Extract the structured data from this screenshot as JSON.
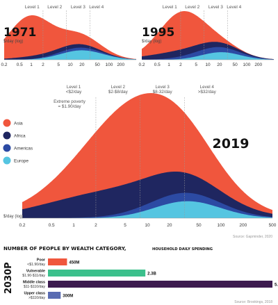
{
  "colors": {
    "asia": "#f0563d",
    "africa": "#1f2660",
    "americas": "#2c4aa3",
    "europe": "#55c5e1",
    "bar_poor": "#f0563d",
    "bar_vulnerable": "#3cc08c",
    "bar_middle": "#3d1b4f",
    "bar_upper": "#5a6cb2"
  },
  "chart_data": [
    {
      "type": "area",
      "title": "1971",
      "ylabel": "$/day (log)",
      "x_scale": "log",
      "xlim": [
        0.2,
        500
      ],
      "x_ticks": [
        "0.2",
        "0.5",
        "1",
        "2",
        "5",
        "10",
        "20",
        "50",
        "100",
        "200"
      ],
      "levels": [
        "Level 1",
        "Level 2",
        "Level 3",
        "Level 4"
      ],
      "level_boundaries": [
        2,
        8,
        32
      ],
      "series": [
        {
          "name": "Asia",
          "components": [
            {
              "mu": 0.9,
              "sigma": 0.55,
              "h": 0.72
            },
            {
              "mu": 17,
              "sigma": 0.55,
              "h": 0.16
            }
          ]
        },
        {
          "name": "Africa",
          "components": [
            {
              "mu": 1.4,
              "sigma": 0.6,
              "h": 0.05
            },
            {
              "mu": 14,
              "sigma": 0.55,
              "h": 0.055
            }
          ]
        },
        {
          "name": "Americas",
          "components": [
            {
              "mu": 15,
              "sigma": 0.55,
              "h": 0.05
            }
          ]
        },
        {
          "name": "Europe",
          "components": [
            {
              "mu": 20,
              "sigma": 0.55,
              "h": 0.17
            }
          ]
        }
      ]
    },
    {
      "type": "area",
      "title": "1995",
      "ylabel": "$/day (log)",
      "x_scale": "log",
      "xlim": [
        0.2,
        500
      ],
      "x_ticks": [
        "0.2",
        "0.5",
        "1",
        "2",
        "5",
        "10",
        "20",
        "50",
        "100",
        "200"
      ],
      "levels": [
        "Level 1",
        "Level 2",
        "Level 3",
        "Level 4"
      ],
      "level_boundaries": [
        2,
        8,
        32
      ],
      "series": [
        {
          "name": "Asia",
          "components": [
            {
              "mu": 1.8,
              "sigma": 0.55,
              "h": 0.6
            },
            {
              "mu": 4,
              "sigma": 0.5,
              "h": 0.12
            }
          ]
        },
        {
          "name": "Africa",
          "components": [
            {
              "mu": 2,
              "sigma": 0.85,
              "h": 0.12
            },
            {
              "mu": 20,
              "sigma": 0.55,
              "h": 0.03
            }
          ]
        },
        {
          "name": "Americas",
          "components": [
            {
              "mu": 12,
              "sigma": 0.65,
              "h": 0.1
            }
          ]
        },
        {
          "name": "Europe",
          "components": [
            {
              "mu": 22,
              "sigma": 0.5,
              "h": 0.14
            }
          ]
        }
      ]
    },
    {
      "type": "area",
      "title": "2019",
      "ylabel": "$/day (log)",
      "x_scale": "log",
      "xlim": [
        0.2,
        500
      ],
      "x_ticks": [
        "0.2",
        "0.5",
        "1",
        "2",
        "5",
        "10",
        "20",
        "50",
        "100",
        "200",
        "500"
      ],
      "levels": [
        {
          "name": "Level 1",
          "range": "<$2/day"
        },
        {
          "name": "Level 2",
          "range": "$2-$8/day"
        },
        {
          "name": "Level 3",
          "range": "$8-32/day"
        },
        {
          "name": "Level 4",
          "range": ">$32/day"
        }
      ],
      "level_boundaries": [
        2,
        8,
        32
      ],
      "annotation": "Extreme poverty\n= $1.90/day",
      "legend": [
        "Asia",
        "Africa",
        "Americas",
        "Europe"
      ],
      "source": "Source: Gapminder, 2020",
      "series": [
        {
          "name": "Asia",
          "components": [
            {
              "mu": 8,
              "sigma": 0.72,
              "h": 1.0
            }
          ]
        },
        {
          "name": "Africa",
          "components": [
            {
              "mu": 1.5,
              "sigma": 0.75,
              "h": 0.18
            },
            {
              "mu": 15,
              "sigma": 0.8,
              "h": 0.22
            }
          ]
        },
        {
          "name": "Americas",
          "components": [
            {
              "mu": 28,
              "sigma": 0.55,
              "h": 0.1
            }
          ]
        },
        {
          "name": "Europe",
          "components": [
            {
              "mu": 35,
              "sigma": 0.45,
              "h": 0.2
            }
          ]
        }
      ]
    },
    {
      "type": "bar",
      "title": "NUMBER OF PEOPLE BY WEALTH CATEGORY,",
      "subtitle": "HOUSEHOLD DAILY SPENDING",
      "side_label": "2030P",
      "source": "Source: Brookings, 2018",
      "categories": [
        {
          "name": "Poor",
          "range": "<$1.90/day"
        },
        {
          "name": "Vulnerable",
          "range": "$1.90-$11/day"
        },
        {
          "name": "Middle class",
          "range": "$11-$110/day"
        },
        {
          "name": "Upper class",
          "range": ">$110/day"
        }
      ],
      "values": [
        0.45,
        2.3,
        5.3,
        0.3
      ],
      "value_labels": [
        "450M",
        "2.3B",
        "5.3B",
        "300M"
      ],
      "unit": "billion people"
    }
  ]
}
